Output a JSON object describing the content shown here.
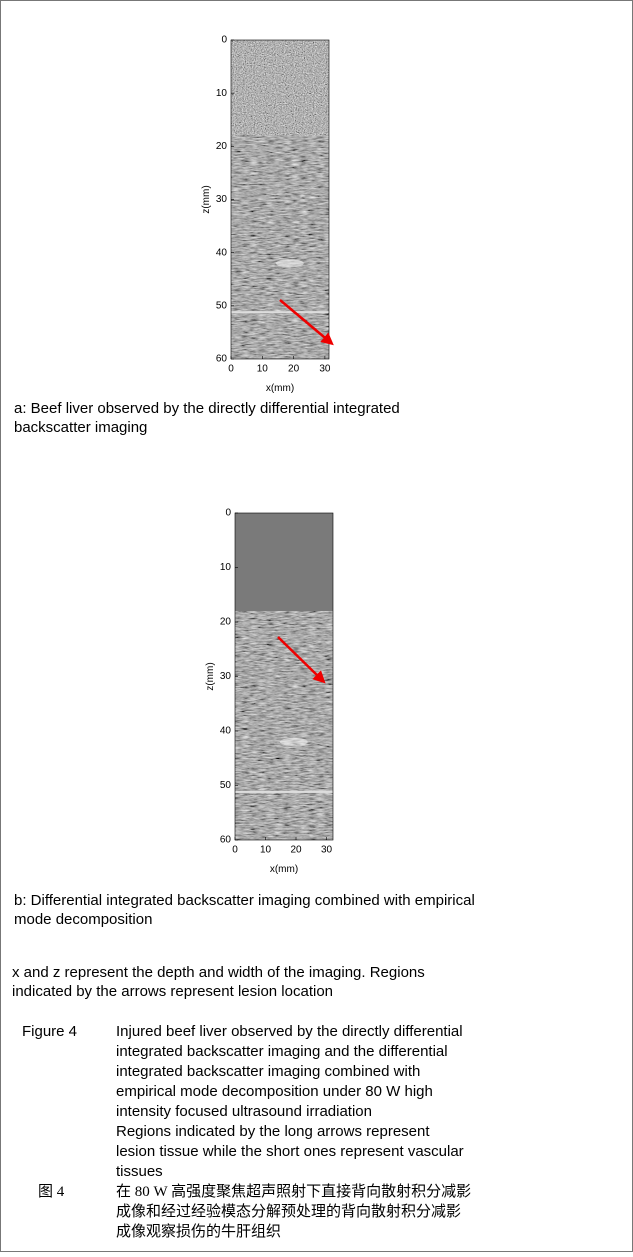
{
  "panels": [
    {
      "yticks": [
        0,
        10,
        20,
        30,
        40,
        50,
        60
      ],
      "xticks": [
        0,
        10,
        20,
        30
      ],
      "ylabel": "z(mm)",
      "xlabel": "x(mm)",
      "caption": [
        "a: Beef liver observed by the directly differential integrated",
        "backscatter imaging"
      ]
    },
    {
      "yticks": [
        0,
        10,
        20,
        30,
        40,
        50,
        60
      ],
      "xticks": [
        0,
        10,
        20,
        30
      ],
      "ylabel": "z(mm)",
      "xlabel": "x(mm)",
      "caption": [
        "b: Differential integrated backscatter imaging combined with empirical",
        "mode decomposition"
      ]
    }
  ],
  "note": [
    "x and z represent the depth and width of the imaging. Regions",
    "indicated by the arrows represent lesion location"
  ],
  "figure_caption": {
    "label": "Figure 4",
    "lines": [
      "Injured beef liver observed by the directly differential",
      "integrated backscatter imaging and the differential",
      "integrated backscatter imaging combined with",
      "empirical mode decomposition under 80 W high",
      "intensity focused ultrasound irradiation",
      "Regions indicated by the long arrows represent",
      "lesion tissue while the short ones represent vascular",
      "tissues"
    ]
  },
  "figure_caption_zh": {
    "label": "图 4",
    "lines": [
      "在 80 W 高强度聚焦超声照射下直接背向散射积分减影",
      "成像和经过经验模态分解预处理的背向散射积分减影",
      "成像观察损伤的牛肝组织"
    ]
  }
}
